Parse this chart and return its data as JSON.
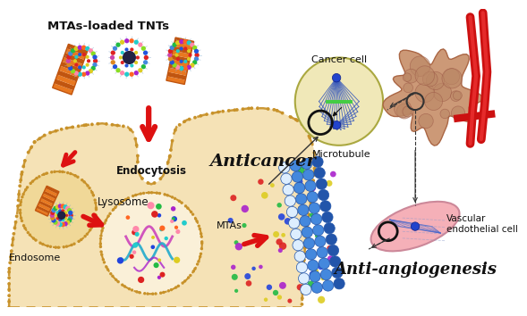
{
  "background_color": "#ffffff",
  "title": "MTAs-loaded TNTs",
  "labels": {
    "endocytosis": "Endocytosis",
    "lysosome": "Lysosome",
    "endosome": "Endosome",
    "microtubule": "Microtubule",
    "mtas": "MTAs",
    "anticancer": "Anticancer",
    "cancer_cell": "Cancer cell",
    "anti_angiogenesis": "Anti-angiogenesis",
    "vascular": "Vascular\nendothelial cell"
  },
  "colors": {
    "cell_fill": "#f5e0b0",
    "cell_membrane": "#c8922a",
    "endosome_fill": "#f0d898",
    "lysosome_fill": "#faf0d8",
    "red_arrow": "#dd1111",
    "tnt_orange": "#e87820",
    "tnt_dark": "#c05510",
    "bead_blue1": "#4488dd",
    "bead_blue2": "#2255aa",
    "bead_white": "#ddeeff",
    "cancer_fill": "#f0e8b8",
    "cancer_border": "#aaa840",
    "cancer_line": "#3355bb",
    "vascular_fill": "#f5b0b8",
    "tumor_fill": "#cc9977",
    "tumor_border": "#aa6644",
    "vessel_red": "#cc1111",
    "dot_red": "#dd2222",
    "dot_green": "#22bb44",
    "dot_blue": "#2244dd",
    "dot_yellow": "#ddcc22",
    "dot_purple": "#aa22cc",
    "dot_orange": "#ff6622",
    "dot_cyan": "#22cccc",
    "chain_pink": "#cc44aa",
    "chain_blue": "#2255cc",
    "chain_cyan": "#22aacc"
  },
  "figsize": [
    5.89,
    3.54
  ],
  "dpi": 100
}
